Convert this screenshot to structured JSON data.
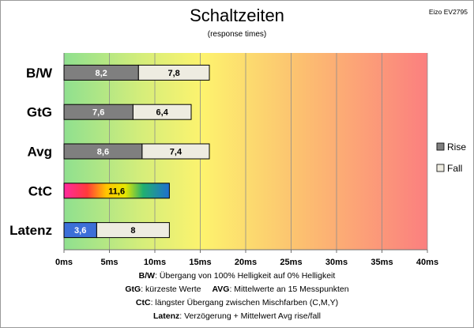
{
  "chart_data": {
    "type": "bar",
    "stacked": true,
    "orientation": "horizontal",
    "title": "Schaltzeiten",
    "subtitle": "(response times)",
    "corner_label": "Eizo EV2795",
    "categories": [
      "B/W",
      "GtG",
      "Avg",
      "CtC",
      "Latenz"
    ],
    "series": [
      {
        "name": "Rise",
        "values": [
          8.2,
          7.6,
          8.6,
          11.6,
          3.6
        ],
        "labels": [
          "8,2",
          "7,6",
          "8,6",
          "11,6",
          "3,6"
        ],
        "color": "#7f7f7f"
      },
      {
        "name": "Fall",
        "values": [
          7.8,
          6.4,
          7.4,
          null,
          8
        ],
        "labels": [
          "7,8",
          "6,4",
          "7,4",
          "",
          "8"
        ],
        "color": "#eeece1"
      }
    ],
    "special_bars": {
      "CtC": "rainbow-gradient",
      "Latenz": "#3c6fd8"
    },
    "xlim": [
      0,
      40
    ],
    "x_ticks": [
      0,
      5,
      10,
      15,
      20,
      25,
      30,
      35,
      40
    ],
    "x_tick_labels": [
      "0ms",
      "5ms",
      "10ms",
      "15ms",
      "20ms",
      "25ms",
      "30ms",
      "35ms",
      "40ms"
    ],
    "background": "green-yellow-red gradient",
    "grid": true,
    "legend_position": "right"
  },
  "notes": [
    {
      "key": "B/W",
      "text": ":  Übergang von 100% Helligkeit auf 0% Helligkeit"
    },
    {
      "key": "GtG",
      "text": ": kürzeste  Werte",
      "key2": "AVG",
      "text2": ": Mittelwerte  an 15 Messpunkten"
    },
    {
      "key": "CtC",
      "text": ": längster Übergang  zwischen Mischfarben (C,M,Y)"
    },
    {
      "key": "Latenz",
      "text": ": Verzögerung  + Mittelwert Avg rise/fall"
    }
  ]
}
